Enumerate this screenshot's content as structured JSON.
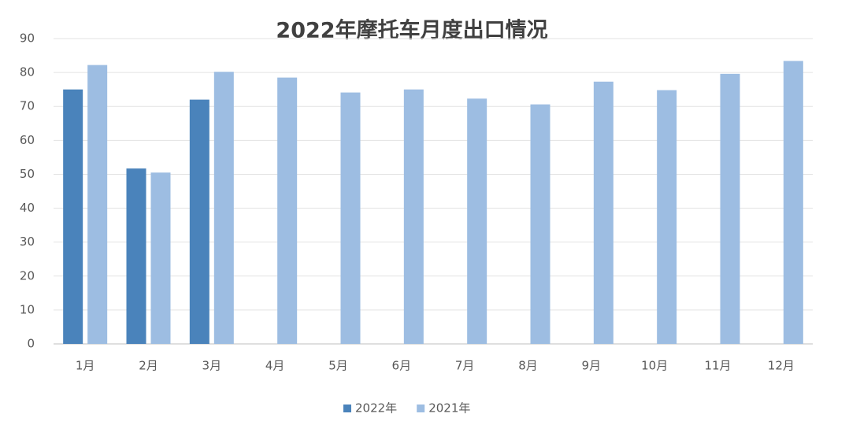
{
  "chart_data": {
    "type": "bar",
    "title": "2022年摩托车月度出口情况",
    "categories": [
      "1月",
      "2月",
      "3月",
      "4月",
      "5月",
      "6月",
      "7月",
      "8月",
      "9月",
      "10月",
      "11月",
      "12月"
    ],
    "series": [
      {
        "name": "2022年",
        "color": "#4a83bb",
        "values": [
          75,
          51.7,
          72,
          null,
          null,
          null,
          null,
          null,
          null,
          null,
          null,
          null
        ]
      },
      {
        "name": "2021年",
        "color": "#9dbde2",
        "values": [
          82.2,
          50.5,
          80.2,
          78.5,
          74.1,
          75,
          72.3,
          70.6,
          77.3,
          74.8,
          79.6,
          83.4
        ]
      }
    ],
    "ylim": [
      0,
      90
    ],
    "yticks": [
      0,
      10,
      20,
      30,
      40,
      50,
      60,
      70,
      80,
      90
    ],
    "grid": true,
    "legend": "bottom"
  }
}
